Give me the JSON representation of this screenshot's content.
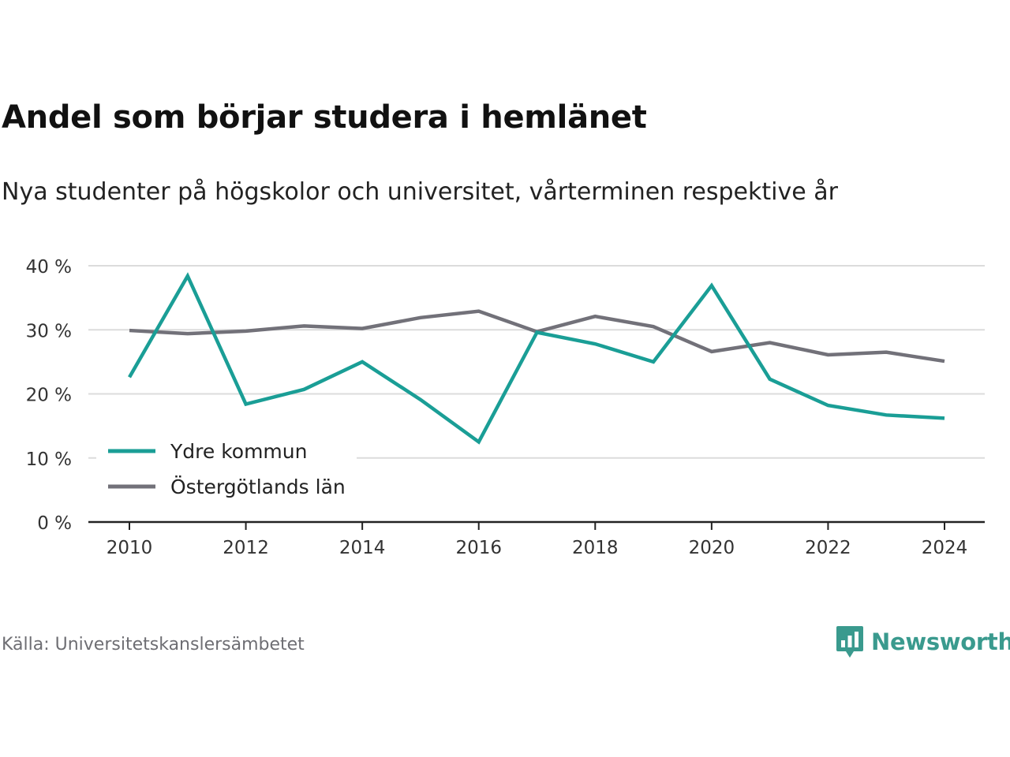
{
  "title": "Andel som börjar studera i hemlänet",
  "subtitle": "Nya studenter på högskolor och universitet, vårterminen respektive år",
  "source": "Källa: Universitetskanslersämbetet",
  "brand": {
    "name": "Newsworthy",
    "icon": "newsworthy-logo-icon",
    "color": "#3a9a8e"
  },
  "chart_data": {
    "type": "line",
    "x": [
      2010,
      2011,
      2012,
      2013,
      2014,
      2015,
      2016,
      2017,
      2018,
      2019,
      2020,
      2021,
      2022,
      2023,
      2024
    ],
    "xticks": [
      "2010",
      "2012",
      "2014",
      "2016",
      "2018",
      "2020",
      "2022",
      "2024"
    ],
    "ylim": [
      0,
      40
    ],
    "yticks": [
      0,
      10,
      20,
      30,
      40
    ],
    "ytick_labels": [
      "0 %",
      "10 %",
      "20 %",
      "30 %",
      "40 %"
    ],
    "grid": true,
    "legend_position": "bottom-left",
    "series": [
      {
        "name": "Ydre kommun",
        "color": "#1a9e96",
        "values": [
          22.6,
          38.4,
          18.4,
          20.7,
          25.0,
          19.1,
          12.5,
          29.6,
          27.8,
          25.0,
          36.9,
          22.3,
          18.2,
          16.7,
          16.2
        ]
      },
      {
        "name": "Östergötlands län",
        "color": "#727179",
        "values": [
          29.9,
          29.4,
          29.8,
          30.6,
          30.2,
          31.9,
          32.9,
          29.7,
          32.1,
          30.5,
          26.6,
          28.0,
          26.1,
          26.5,
          25.1
        ]
      }
    ]
  }
}
